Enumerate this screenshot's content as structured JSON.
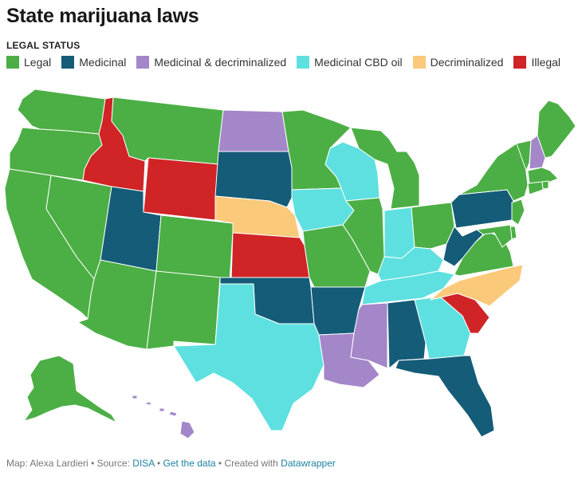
{
  "title": "State marijuana laws",
  "legend": {
    "heading": "LEGAL STATUS",
    "items": [
      {
        "key": "legal",
        "label": "Legal",
        "color": "#4caf45"
      },
      {
        "key": "medicinal",
        "label": "Medicinal",
        "color": "#155c78"
      },
      {
        "key": "med_decrim",
        "label": "Medicinal & decriminalized",
        "color": "#a387c9"
      },
      {
        "key": "cbd",
        "label": "Medicinal CBD oil",
        "color": "#5ee0e0"
      },
      {
        "key": "decrim",
        "label": "Decriminalized",
        "color": "#fbc97a"
      },
      {
        "key": "illegal",
        "label": "Illegal",
        "color": "#d02427"
      }
    ]
  },
  "footer": {
    "map_by": "Map: Alexa Lardieri",
    "sep1": " • Source: ",
    "source": "DISA",
    "sep2": " • ",
    "get_data": "Get the data",
    "sep3": " • Created with ",
    "tool": "Datawrapper"
  },
  "states": [
    {
      "name": "Washington",
      "status": "legal"
    },
    {
      "name": "Oregon",
      "status": "legal"
    },
    {
      "name": "California",
      "status": "legal"
    },
    {
      "name": "Nevada",
      "status": "legal"
    },
    {
      "name": "Idaho",
      "status": "illegal"
    },
    {
      "name": "Montana",
      "status": "legal"
    },
    {
      "name": "Wyoming",
      "status": "illegal"
    },
    {
      "name": "Utah",
      "status": "medicinal"
    },
    {
      "name": "Arizona",
      "status": "legal"
    },
    {
      "name": "Colorado",
      "status": "legal"
    },
    {
      "name": "New Mexico",
      "status": "legal"
    },
    {
      "name": "North Dakota",
      "status": "med_decrim"
    },
    {
      "name": "South Dakota",
      "status": "medicinal"
    },
    {
      "name": "Nebraska",
      "status": "decrim"
    },
    {
      "name": "Kansas",
      "status": "illegal"
    },
    {
      "name": "Oklahoma",
      "status": "medicinal"
    },
    {
      "name": "Texas",
      "status": "cbd"
    },
    {
      "name": "Minnesota",
      "status": "legal"
    },
    {
      "name": "Iowa",
      "status": "cbd"
    },
    {
      "name": "Missouri",
      "status": "legal"
    },
    {
      "name": "Arkansas",
      "status": "medicinal"
    },
    {
      "name": "Louisiana",
      "status": "med_decrim"
    },
    {
      "name": "Wisconsin",
      "status": "cbd"
    },
    {
      "name": "Illinois",
      "status": "legal"
    },
    {
      "name": "Michigan",
      "status": "legal"
    },
    {
      "name": "Indiana",
      "status": "cbd"
    },
    {
      "name": "Ohio",
      "status": "legal"
    },
    {
      "name": "Kentucky",
      "status": "cbd"
    },
    {
      "name": "Tennessee",
      "status": "cbd"
    },
    {
      "name": "Mississippi",
      "status": "med_decrim"
    },
    {
      "name": "Alabama",
      "status": "medicinal"
    },
    {
      "name": "Georgia",
      "status": "cbd"
    },
    {
      "name": "Florida",
      "status": "medicinal"
    },
    {
      "name": "South Carolina",
      "status": "illegal"
    },
    {
      "name": "North Carolina",
      "status": "decrim"
    },
    {
      "name": "Virginia",
      "status": "legal"
    },
    {
      "name": "West Virginia",
      "status": "medicinal"
    },
    {
      "name": "Pennsylvania",
      "status": "medicinal"
    },
    {
      "name": "New York",
      "status": "legal"
    },
    {
      "name": "Vermont",
      "status": "legal"
    },
    {
      "name": "New Hampshire",
      "status": "med_decrim"
    },
    {
      "name": "Maine",
      "status": "legal"
    },
    {
      "name": "Massachusetts",
      "status": "legal"
    },
    {
      "name": "Rhode Island",
      "status": "legal"
    },
    {
      "name": "Connecticut",
      "status": "legal"
    },
    {
      "name": "New Jersey",
      "status": "legal"
    },
    {
      "name": "Delaware",
      "status": "legal"
    },
    {
      "name": "Maryland",
      "status": "legal"
    },
    {
      "name": "Alaska",
      "status": "legal"
    },
    {
      "name": "Hawaii",
      "status": "med_decrim"
    }
  ]
}
